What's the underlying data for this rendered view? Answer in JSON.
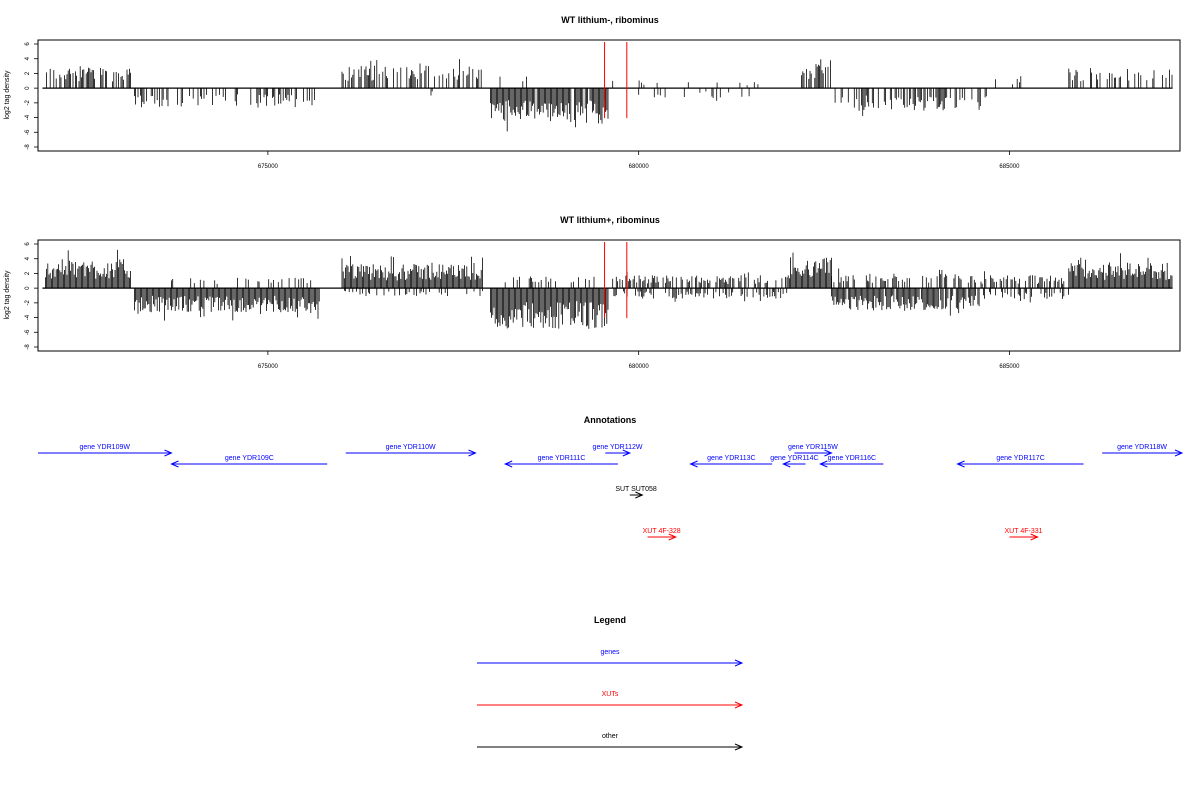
{
  "colors": {
    "gene": "#0000ff",
    "xut": "#ff0000",
    "other": "#000000",
    "marker": "#ff0000",
    "signal": "#000000"
  },
  "chart_data": [
    {
      "type": "bar",
      "title": "WT lithium-, ribominus",
      "ylabel": "log2 tag density",
      "xlabel": "",
      "xlim": [
        671900,
        687300
      ],
      "ylim": [
        -8,
        6
      ],
      "xticks": [
        675000,
        680000,
        685000
      ],
      "xtick_labels": [
        "675000",
        "680000",
        "685000"
      ],
      "yticks": [
        6,
        4,
        2,
        0,
        -2,
        -4,
        -6,
        -8
      ],
      "ytick_labels": [
        "6",
        "4",
        "2",
        "0",
        "-2",
        "-4",
        "-6",
        "-8"
      ],
      "markers": [
        679540,
        679840
      ],
      "profile": [
        {
          "x0": 672000,
          "x1": 673150,
          "sign": 1,
          "amp": 2.6,
          "density": 0.55
        },
        {
          "x0": 673200,
          "x1": 675700,
          "sign": -1,
          "amp": 2.4,
          "density": 0.45
        },
        {
          "x0": 676000,
          "x1": 677900,
          "sign": 1,
          "amp": 2.8,
          "density": 0.6
        },
        {
          "x0": 677200,
          "x1": 677400,
          "sign": -1,
          "amp": 1.2,
          "density": 0.3
        },
        {
          "x0": 678000,
          "x1": 679600,
          "sign": -1,
          "amp": 4.2,
          "density": 0.95
        },
        {
          "x0": 678000,
          "x1": 678500,
          "sign": 1,
          "amp": 1.5,
          "density": 0.15
        },
        {
          "x0": 679650,
          "x1": 681700,
          "sign": 1,
          "amp": 1.0,
          "density": 0.08
        },
        {
          "x0": 680000,
          "x1": 681700,
          "sign": -1,
          "amp": 1.2,
          "density": 0.08
        },
        {
          "x0": 682100,
          "x1": 682600,
          "sign": 1,
          "amp": 3.0,
          "density": 0.5
        },
        {
          "x0": 682600,
          "x1": 684700,
          "sign": -1,
          "amp": 2.8,
          "density": 0.55
        },
        {
          "x0": 684700,
          "x1": 685800,
          "sign": 1,
          "amp": 1.2,
          "density": 0.1
        },
        {
          "x0": 685800,
          "x1": 687200,
          "sign": 1,
          "amp": 2.5,
          "density": 0.4
        }
      ]
    },
    {
      "type": "bar",
      "title": "WT lithium+, ribominus",
      "ylabel": "log2 tag density",
      "xlabel": "",
      "xlim": [
        671900,
        687300
      ],
      "ylim": [
        -8,
        6
      ],
      "xticks": [
        675000,
        680000,
        685000
      ],
      "xtick_labels": [
        "675000",
        "680000",
        "685000"
      ],
      "yticks": [
        6,
        4,
        2,
        0,
        -2,
        -4,
        -6,
        -8
      ],
      "ytick_labels": [
        "6",
        "4",
        "2",
        "0",
        "-2",
        "-4",
        "-6",
        "-8"
      ],
      "markers": [
        679540,
        679840
      ],
      "profile": [
        {
          "x0": 672000,
          "x1": 673150,
          "sign": 1,
          "amp": 3.6,
          "density": 1.0
        },
        {
          "x0": 673200,
          "x1": 675700,
          "sign": -1,
          "amp": 3.0,
          "density": 1.0
        },
        {
          "x0": 673700,
          "x1": 675600,
          "sign": 1,
          "amp": 1.3,
          "density": 0.25
        },
        {
          "x0": 676000,
          "x1": 677900,
          "sign": 1,
          "amp": 3.0,
          "density": 1.0
        },
        {
          "x0": 676000,
          "x1": 677900,
          "sign": -1,
          "amp": 1.0,
          "density": 0.25
        },
        {
          "x0": 678000,
          "x1": 679600,
          "sign": -1,
          "amp": 5.0,
          "density": 1.0
        },
        {
          "x0": 678200,
          "x1": 679400,
          "sign": 1,
          "amp": 1.5,
          "density": 0.3
        },
        {
          "x0": 679650,
          "x1": 682000,
          "sign": 1,
          "amp": 1.6,
          "density": 0.55
        },
        {
          "x0": 679650,
          "x1": 682000,
          "sign": -1,
          "amp": 1.3,
          "density": 0.45
        },
        {
          "x0": 682000,
          "x1": 682600,
          "sign": 1,
          "amp": 3.8,
          "density": 1.0
        },
        {
          "x0": 682600,
          "x1": 684600,
          "sign": -1,
          "amp": 2.8,
          "density": 0.9
        },
        {
          "x0": 682600,
          "x1": 684600,
          "sign": 1,
          "amp": 1.8,
          "density": 0.45
        },
        {
          "x0": 684600,
          "x1": 685800,
          "sign": 1,
          "amp": 1.6,
          "density": 0.5
        },
        {
          "x0": 684600,
          "x1": 685800,
          "sign": -1,
          "amp": 1.4,
          "density": 0.45
        },
        {
          "x0": 685800,
          "x1": 687200,
          "sign": 1,
          "amp": 3.2,
          "density": 1.0
        }
      ]
    }
  ],
  "annotations": {
    "title": "Annotations",
    "features": [
      {
        "label": "gene YDR109W",
        "type": "gene",
        "strand": "+",
        "start": 671900,
        "end": 673700,
        "row": 0
      },
      {
        "label": "gene YDR109C",
        "type": "gene",
        "strand": "-",
        "start": 673700,
        "end": 675800,
        "row": 1
      },
      {
        "label": "gene YDR110W",
        "type": "gene",
        "strand": "+",
        "start": 676050,
        "end": 677800,
        "row": 0
      },
      {
        "label": "gene YDR111C",
        "type": "gene",
        "strand": "-",
        "start": 678200,
        "end": 679720,
        "row": 1
      },
      {
        "label": "gene YDR112W",
        "type": "gene",
        "strand": "+",
        "start": 679550,
        "end": 679880,
        "row": 0
      },
      {
        "label": "gene YDR113C",
        "type": "gene",
        "strand": "-",
        "start": 680700,
        "end": 681800,
        "row": 1
      },
      {
        "label": "gene YDR114C",
        "type": "gene",
        "strand": "-",
        "start": 681950,
        "end": 682250,
        "row": 1
      },
      {
        "label": "gene YDR115W",
        "type": "gene",
        "strand": "+",
        "start": 682100,
        "end": 682600,
        "row": 0
      },
      {
        "label": "gene YDR116C",
        "type": "gene",
        "strand": "-",
        "start": 682450,
        "end": 683300,
        "row": 1
      },
      {
        "label": "gene YDR117C",
        "type": "gene",
        "strand": "-",
        "start": 684300,
        "end": 686000,
        "row": 1
      },
      {
        "label": "gene YDR118W",
        "type": "gene",
        "strand": "+",
        "start": 686250,
        "end": 688200,
        "row": 0
      },
      {
        "label": "SUT SUT058",
        "type": "other",
        "strand": "+",
        "start": 679880,
        "end": 680050,
        "row": 2
      },
      {
        "label": "XUT 4F-328",
        "type": "xut",
        "strand": "+",
        "start": 680120,
        "end": 680500,
        "row": 3
      },
      {
        "label": "XUT 4F-331",
        "type": "xut",
        "strand": "+",
        "start": 685000,
        "end": 685380,
        "row": 3
      }
    ]
  },
  "legend": {
    "title": "Legend",
    "items": [
      {
        "label": "genes",
        "type": "gene"
      },
      {
        "label": "XUTs",
        "type": "xut"
      },
      {
        "label": "other",
        "type": "other"
      }
    ]
  }
}
